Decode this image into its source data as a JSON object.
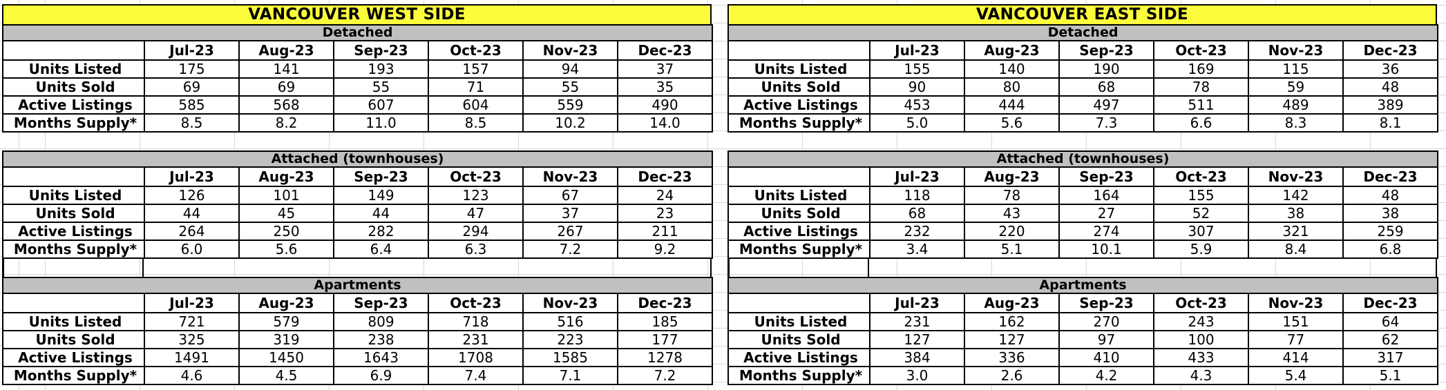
{
  "sheet": {
    "background": "#ffffff",
    "gridline_color": "#d9d9d9"
  },
  "colors": {
    "panel_title_bg": "#fcfc3d",
    "section_header_bg": "#c0c0c0",
    "table_border": "#000000",
    "text": "#000000"
  },
  "months": [
    "Jul-23",
    "Aug-23",
    "Sep-23",
    "Oct-23",
    "Nov-23",
    "Dec-23"
  ],
  "metric_labels": [
    "Units Listed",
    "Units Sold",
    "Active Listings",
    "Months Supply*"
  ],
  "panels": [
    {
      "title": "VANCOUVER WEST SIDE",
      "sections": [
        {
          "name": "Detached",
          "rows": [
            [
              175,
              141,
              193,
              157,
              94,
              37
            ],
            [
              69,
              69,
              55,
              71,
              55,
              35
            ],
            [
              585,
              568,
              607,
              604,
              559,
              490
            ],
            [
              "8.5",
              "8.2",
              "11.0",
              "8.5",
              "10.2",
              "14.0"
            ]
          ]
        },
        {
          "name": "Attached (townhouses)",
          "rows": [
            [
              126,
              101,
              149,
              123,
              67,
              24
            ],
            [
              44,
              45,
              44,
              47,
              37,
              23
            ],
            [
              264,
              250,
              282,
              294,
              267,
              211
            ],
            [
              "6.0",
              "5.6",
              "6.4",
              "6.3",
              "7.2",
              "9.2"
            ]
          ]
        },
        {
          "name": "Apartments",
          "rows": [
            [
              721,
              579,
              809,
              718,
              516,
              185
            ],
            [
              325,
              319,
              238,
              231,
              223,
              177
            ],
            [
              1491,
              1450,
              1643,
              1708,
              1585,
              1278
            ],
            [
              "4.6",
              "4.5",
              "6.9",
              "7.4",
              "7.1",
              "7.2"
            ]
          ]
        }
      ]
    },
    {
      "title": "VANCOUVER EAST SIDE",
      "sections": [
        {
          "name": "Detached",
          "rows": [
            [
              155,
              140,
              190,
              169,
              115,
              36
            ],
            [
              90,
              80,
              68,
              78,
              59,
              48
            ],
            [
              453,
              444,
              497,
              511,
              489,
              389
            ],
            [
              "5.0",
              "5.6",
              "7.3",
              "6.6",
              "8.3",
              "8.1"
            ]
          ]
        },
        {
          "name": "Attached (townhouses)",
          "rows": [
            [
              118,
              78,
              164,
              155,
              142,
              48
            ],
            [
              68,
              43,
              27,
              52,
              38,
              38
            ],
            [
              232,
              220,
              274,
              307,
              321,
              259
            ],
            [
              "3.4",
              "5.1",
              "10.1",
              "5.9",
              "8.4",
              "6.8"
            ]
          ]
        },
        {
          "name": "Apartments",
          "rows": [
            [
              231,
              162,
              270,
              243,
              151,
              64
            ],
            [
              127,
              127,
              97,
              100,
              77,
              62
            ],
            [
              384,
              336,
              410,
              433,
              414,
              317
            ],
            [
              "3.0",
              "2.6",
              "4.2",
              "4.3",
              "5.4",
              "5.1"
            ]
          ]
        }
      ]
    }
  ]
}
